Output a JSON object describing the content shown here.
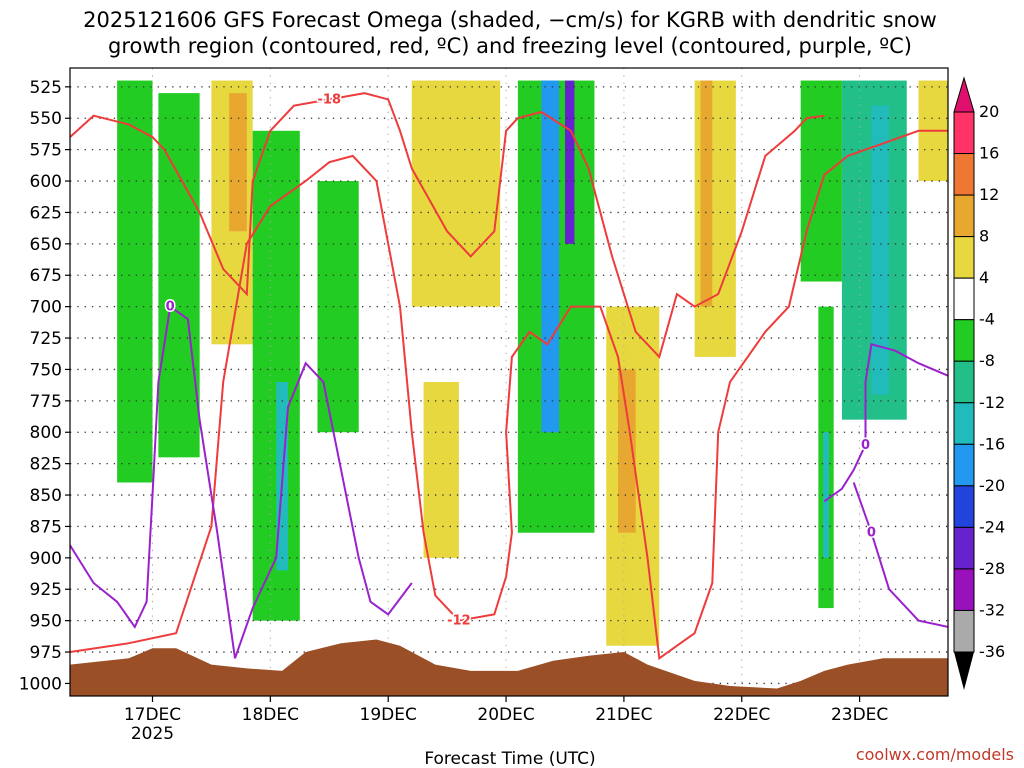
{
  "chart_data": {
    "type": "heatmap",
    "title_line1": "2025121606 GFS Forecast Omega (shaded, −cm/s) for KGRB with dendritic snow",
    "title_line2": "growth region (contoured, red, ºC) and freezing level (contoured, purple, ºC)",
    "xlabel": "Forecast Time (UTC)",
    "credit": "coolwx.com/models",
    "y_axis": {
      "unit": "hPa",
      "ticks": [
        525,
        550,
        575,
        600,
        625,
        650,
        675,
        700,
        725,
        750,
        775,
        800,
        825,
        850,
        875,
        900,
        925,
        950,
        975,
        1000
      ],
      "range": [
        510,
        1010
      ]
    },
    "x_axis": {
      "range_days": [
        16.3,
        23.75
      ],
      "ticks": [
        {
          "day": 17,
          "label": "17DEC",
          "sub": "2025"
        },
        {
          "day": 18,
          "label": "18DEC",
          "sub": ""
        },
        {
          "day": 19,
          "label": "19DEC",
          "sub": ""
        },
        {
          "day": 20,
          "label": "20DEC",
          "sub": ""
        },
        {
          "day": 21,
          "label": "21DEC",
          "sub": ""
        },
        {
          "day": 22,
          "label": "22DEC",
          "sub": ""
        },
        {
          "day": 23,
          "label": "23DEC",
          "sub": ""
        }
      ]
    },
    "colorbar": {
      "labels": [
        "20",
        "16",
        "12",
        "8",
        "4",
        "-4",
        "-8",
        "-12",
        "-16",
        "-20",
        "-24",
        "-28",
        "-32",
        "-36"
      ],
      "colors": [
        "#ff3366",
        "#ee7733",
        "#e8a830",
        "#e8d840",
        "#ffffff",
        "#22cc22",
        "#22c088",
        "#22bbbb",
        "#2299ee",
        "#2244dd",
        "#6622cc",
        "#9911bb",
        "#aaaaaa"
      ]
    },
    "shaded_regions": [
      {
        "color": "#22cc22",
        "day": [
          16.7,
          17.0
        ],
        "p": [
          520,
          840
        ]
      },
      {
        "color": "#22cc22",
        "day": [
          17.05,
          17.4
        ],
        "p": [
          530,
          820
        ]
      },
      {
        "color": "#e8d840",
        "day": [
          17.5,
          17.85
        ],
        "p": [
          520,
          730
        ]
      },
      {
        "color": "#e8a830",
        "day": [
          17.65,
          17.8
        ],
        "p": [
          530,
          640
        ]
      },
      {
        "color": "#22cc22",
        "day": [
          17.85,
          18.25
        ],
        "p": [
          560,
          950
        ]
      },
      {
        "color": "#22bbbb",
        "day": [
          18.05,
          18.15
        ],
        "p": [
          760,
          910
        ]
      },
      {
        "color": "#22cc22",
        "day": [
          18.4,
          18.75
        ],
        "p": [
          600,
          800
        ]
      },
      {
        "color": "#e8d840",
        "day": [
          19.2,
          19.95
        ],
        "p": [
          520,
          700
        ]
      },
      {
        "color": "#e8d840",
        "day": [
          19.3,
          19.6
        ],
        "p": [
          760,
          900
        ]
      },
      {
        "color": "#22cc22",
        "day": [
          20.1,
          20.75
        ],
        "p": [
          520,
          880
        ]
      },
      {
        "color": "#2299ee",
        "day": [
          20.3,
          20.45
        ],
        "p": [
          520,
          800
        ]
      },
      {
        "color": "#6622cc",
        "day": [
          20.5,
          20.58
        ],
        "p": [
          520,
          650
        ]
      },
      {
        "color": "#e8d840",
        "day": [
          20.85,
          21.3
        ],
        "p": [
          700,
          970
        ]
      },
      {
        "color": "#e8a830",
        "day": [
          20.95,
          21.1
        ],
        "p": [
          750,
          880
        ]
      },
      {
        "color": "#e8d840",
        "day": [
          21.6,
          21.95
        ],
        "p": [
          520,
          740
        ]
      },
      {
        "color": "#e8a830",
        "day": [
          21.65,
          21.75
        ],
        "p": [
          520,
          700
        ]
      },
      {
        "color": "#22cc22",
        "day": [
          22.5,
          22.85
        ],
        "p": [
          520,
          680
        ]
      },
      {
        "color": "#22c088",
        "day": [
          22.85,
          23.4
        ],
        "p": [
          520,
          790
        ]
      },
      {
        "color": "#22bbbb",
        "day": [
          23.1,
          23.25
        ],
        "p": [
          540,
          770
        ]
      },
      {
        "color": "#22cc22",
        "day": [
          22.65,
          22.78
        ],
        "p": [
          700,
          940
        ]
      },
      {
        "color": "#22bbbb",
        "day": [
          22.69,
          22.74
        ],
        "p": [
          800,
          900
        ]
      },
      {
        "color": "#e8d840",
        "day": [
          23.5,
          23.75
        ],
        "p": [
          520,
          600
        ]
      }
    ],
    "dgz_contours_red": [
      {
        "label": "-18",
        "points": [
          [
            16.3,
            565
          ],
          [
            16.5,
            548
          ],
          [
            16.8,
            555
          ],
          [
            17.0,
            565
          ],
          [
            17.1,
            575
          ],
          [
            17.25,
            600
          ],
          [
            17.4,
            625
          ],
          [
            17.6,
            670
          ],
          [
            17.8,
            690
          ],
          [
            17.85,
            600
          ],
          [
            18.0,
            560
          ],
          [
            18.2,
            540
          ],
          [
            18.5,
            535
          ],
          [
            18.8,
            530
          ],
          [
            19.0,
            535
          ],
          [
            19.1,
            560
          ],
          [
            19.2,
            590
          ],
          [
            19.5,
            640
          ],
          [
            19.7,
            660
          ],
          [
            19.9,
            640
          ],
          [
            20.0,
            560
          ],
          [
            20.1,
            550
          ],
          [
            20.3,
            545
          ],
          [
            20.55,
            560
          ],
          [
            20.7,
            590
          ],
          [
            20.9,
            660
          ],
          [
            21.1,
            720
          ],
          [
            21.3,
            740
          ],
          [
            21.45,
            690
          ],
          [
            21.6,
            700
          ],
          [
            21.8,
            690
          ],
          [
            22.0,
            640
          ],
          [
            22.2,
            580
          ],
          [
            22.45,
            560
          ],
          [
            22.55,
            550
          ],
          [
            22.7,
            548
          ]
        ]
      },
      {
        "label": "-12",
        "points": [
          [
            16.3,
            975
          ],
          [
            16.8,
            968
          ],
          [
            17.2,
            960
          ],
          [
            17.5,
            875
          ],
          [
            17.6,
            760
          ],
          [
            17.8,
            650
          ],
          [
            18.0,
            620
          ],
          [
            18.3,
            600
          ],
          [
            18.5,
            585
          ],
          [
            18.7,
            580
          ],
          [
            18.9,
            600
          ],
          [
            19.1,
            700
          ],
          [
            19.2,
            800
          ],
          [
            19.3,
            880
          ],
          [
            19.4,
            930
          ],
          [
            19.6,
            950
          ],
          [
            19.9,
            945
          ],
          [
            20.0,
            915
          ],
          [
            20.05,
            880
          ],
          [
            20.0,
            800
          ],
          [
            20.05,
            740
          ],
          [
            20.2,
            720
          ],
          [
            20.35,
            730
          ],
          [
            20.55,
            700
          ],
          [
            20.8,
            700
          ],
          [
            20.95,
            740
          ],
          [
            21.05,
            800
          ],
          [
            21.2,
            900
          ],
          [
            21.3,
            980
          ],
          [
            21.6,
            960
          ],
          [
            21.75,
            920
          ],
          [
            21.8,
            800
          ],
          [
            21.9,
            760
          ],
          [
            22.05,
            740
          ],
          [
            22.2,
            720
          ],
          [
            22.4,
            700
          ],
          [
            22.55,
            640
          ],
          [
            22.7,
            595
          ],
          [
            22.9,
            580
          ],
          [
            23.05,
            575
          ],
          [
            23.2,
            570
          ],
          [
            23.5,
            560
          ],
          [
            23.75,
            560
          ]
        ]
      }
    ],
    "freezing_contours_purple": [
      {
        "label": "0",
        "points": [
          [
            16.3,
            890
          ],
          [
            16.5,
            920
          ],
          [
            16.7,
            935
          ],
          [
            16.85,
            955
          ],
          [
            16.95,
            935
          ],
          [
            17.0,
            850
          ],
          [
            17.05,
            760
          ],
          [
            17.15,
            700
          ],
          [
            17.3,
            710
          ],
          [
            17.4,
            790
          ],
          [
            17.55,
            880
          ],
          [
            17.7,
            980
          ],
          [
            17.85,
            940
          ],
          [
            18.05,
            900
          ],
          [
            18.15,
            780
          ],
          [
            18.3,
            745
          ],
          [
            18.45,
            760
          ],
          [
            18.6,
            830
          ],
          [
            18.75,
            900
          ],
          [
            18.85,
            935
          ],
          [
            19.0,
            945
          ],
          [
            19.2,
            920
          ]
        ]
      },
      {
        "label": "0",
        "points": [
          [
            22.7,
            855
          ],
          [
            22.85,
            845
          ],
          [
            22.95,
            830
          ],
          [
            23.05,
            810
          ],
          [
            23.05,
            760
          ],
          [
            23.1,
            730
          ],
          [
            23.3,
            735
          ],
          [
            23.5,
            745
          ],
          [
            23.75,
            755
          ]
        ]
      },
      {
        "label": "0",
        "points": [
          [
            22.95,
            840
          ],
          [
            23.1,
            880
          ],
          [
            23.25,
            925
          ],
          [
            23.5,
            950
          ],
          [
            23.75,
            955
          ]
        ]
      }
    ],
    "terrain_color": "#9b4f26"
  }
}
